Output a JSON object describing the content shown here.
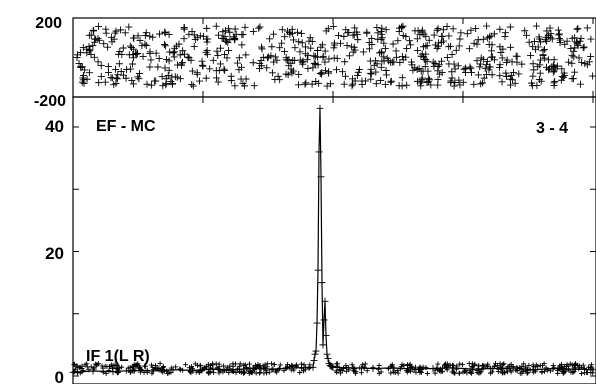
{
  "chart_data": [
    {
      "type": "scatter",
      "panel": "phase",
      "ylim": [
        -200,
        200
      ],
      "yticks": [
        "200",
        "-200"
      ],
      "grid": false,
      "note": "dense band of '+' markers spanning roughly -140 to +160 across the full range"
    },
    {
      "type": "line",
      "panel": "amplitude",
      "labels": {
        "baseline": "EF - MC",
        "channel": "3 - 4",
        "ifband": "IF 1(L R)"
      },
      "ylim": [
        0,
        40
      ],
      "yticks": [
        "40",
        "20",
        "0"
      ],
      "x": [
        0,
        20,
        40,
        60,
        80,
        100,
        120,
        140,
        160,
        180,
        200,
        220,
        240,
        241,
        242,
        243,
        244,
        245,
        246,
        247,
        248,
        249,
        250,
        251,
        252,
        253,
        254,
        255,
        256,
        257,
        258,
        259,
        260,
        280,
        300,
        320,
        340,
        360,
        380,
        400,
        420,
        440,
        460,
        480,
        500,
        520
      ],
      "values": [
        0.6,
        0.8,
        0.7,
        0.9,
        0.8,
        1.0,
        0.9,
        1.1,
        1.0,
        1.2,
        1.1,
        1.3,
        1.4,
        2.5,
        3.5,
        4.0,
        8.5,
        17.0,
        36.0,
        43.0,
        32.0,
        15.0,
        5.0,
        9.0,
        12.0,
        6.5,
        3.5,
        2.8,
        2.0,
        1.7,
        1.6,
        1.5,
        1.4,
        1.3,
        1.2,
        1.3,
        1.1,
        1.2,
        1.3,
        1.1,
        1.2,
        1.3,
        1.0,
        1.2,
        1.1,
        1.0
      ]
    }
  ]
}
